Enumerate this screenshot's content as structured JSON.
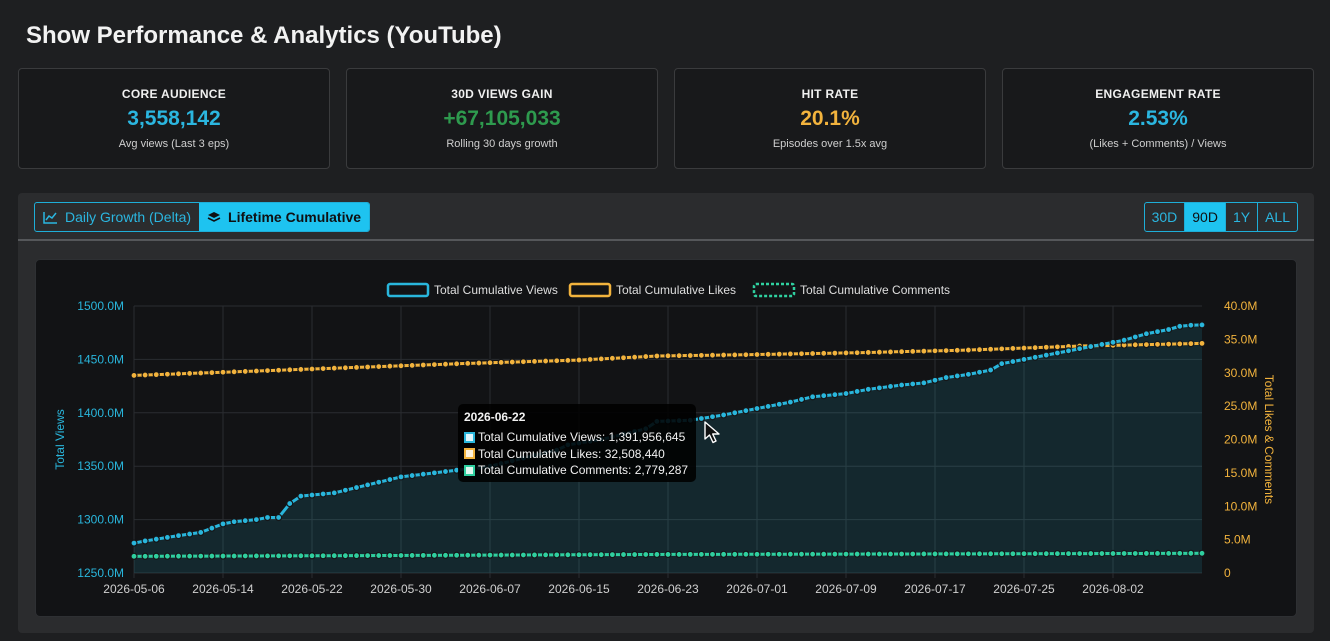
{
  "page": {
    "title": "Show Performance & Analytics (YouTube)"
  },
  "kpis": [
    {
      "label": "CORE AUDIENCE",
      "value": "3,558,142",
      "sub": "Avg views (Last 3 eps)",
      "color": "#2bb6e0"
    },
    {
      "label": "30D VIEWS GAIN",
      "value": "+67,105,033",
      "sub": "Rolling 30 days growth",
      "color": "#2e9a4e"
    },
    {
      "label": "HIT RATE",
      "value": "20.1%",
      "sub": "Episodes over 1.5x avg",
      "color": "#f2b33d"
    },
    {
      "label": "ENGAGEMENT RATE",
      "value": "2.53%",
      "sub": "(Likes + Comments) / Views",
      "color": "#2bb6e0"
    }
  ],
  "toolbar": {
    "daily_label": "Daily Growth (Delta)",
    "daily_icon": "line-chart-icon",
    "cumulative_label": "Lifetime Cumulative",
    "cumulative_icon": "layers-icon",
    "ranges": [
      "30D",
      "90D",
      "1Y",
      "ALL"
    ],
    "active_range": "90D"
  },
  "colors": {
    "accent": "#1ec3f0",
    "views": "#29b6dc",
    "likes": "#f2b33d",
    "comments": "#2fcf9f"
  },
  "chart_data": {
    "type": "line",
    "x_ticks": [
      "2026-05-06",
      "2026-05-14",
      "2026-05-22",
      "2026-05-30",
      "2026-06-07",
      "2026-06-15",
      "2026-06-23",
      "2026-07-01",
      "2026-07-09",
      "2026-07-17",
      "2026-07-25",
      "2026-08-02"
    ],
    "ylabel_left": "Total Views",
    "ylabel_right": "Total Likes & Comments",
    "yticks_left": [
      "1500.0M",
      "1450.0M",
      "1400.0M",
      "1350.0M",
      "1300.0M",
      "1250.0M"
    ],
    "yticks_right": [
      "40.0M",
      "35.0M",
      "30.0M",
      "25.0M",
      "20.0M",
      "15.0M",
      "10.0M",
      "5.0M",
      "0"
    ],
    "ylim_left": [
      1250,
      1500
    ],
    "ylim_right": [
      0,
      40
    ],
    "legend_position": "top",
    "series": [
      {
        "name": "Total Cumulative Views",
        "axis": "left",
        "units": "M",
        "points": [
          [
            0,
            1278
          ],
          [
            1,
            1280
          ],
          [
            4,
            1285
          ],
          [
            6,
            1288
          ],
          [
            7,
            1292
          ],
          [
            8,
            1296
          ],
          [
            9,
            1298
          ],
          [
            11,
            1300
          ],
          [
            12,
            1302
          ],
          [
            13,
            1302
          ],
          [
            14,
            1315
          ],
          [
            15,
            1322
          ],
          [
            18,
            1325
          ],
          [
            20,
            1330
          ],
          [
            22,
            1335
          ],
          [
            24,
            1340
          ],
          [
            28,
            1345
          ],
          [
            32,
            1350
          ],
          [
            34,
            1355
          ],
          [
            36,
            1360
          ],
          [
            38,
            1365
          ],
          [
            39,
            1370
          ],
          [
            42,
            1375
          ],
          [
            44,
            1380
          ],
          [
            46,
            1385
          ],
          [
            47,
            1391.96
          ],
          [
            50,
            1393
          ],
          [
            53,
            1398
          ],
          [
            55,
            1402
          ],
          [
            57,
            1406
          ],
          [
            59,
            1410
          ],
          [
            61,
            1415
          ],
          [
            64,
            1418
          ],
          [
            66,
            1422
          ],
          [
            69,
            1426
          ],
          [
            71,
            1428
          ],
          [
            73,
            1433
          ],
          [
            75,
            1436
          ],
          [
            77,
            1440
          ],
          [
            78,
            1446
          ],
          [
            79,
            1448
          ],
          [
            81,
            1452
          ],
          [
            83,
            1456
          ],
          [
            85,
            1460
          ],
          [
            87,
            1464
          ],
          [
            89,
            1468
          ],
          [
            91,
            1474
          ],
          [
            93,
            1478
          ],
          [
            94,
            1481
          ],
          [
            95,
            1482
          ],
          [
            96,
            1482.3
          ]
        ]
      },
      {
        "name": "Total Cumulative Likes",
        "axis": "right",
        "units": "M",
        "points": [
          [
            0,
            29.6
          ],
          [
            10,
            30.2
          ],
          [
            20,
            30.8
          ],
          [
            30,
            31.4
          ],
          [
            40,
            31.9
          ],
          [
            47,
            32.51
          ],
          [
            55,
            32.7
          ],
          [
            65,
            33.0
          ],
          [
            75,
            33.4
          ],
          [
            85,
            34.0
          ],
          [
            96,
            34.4
          ]
        ]
      },
      {
        "name": "Total Cumulative Comments",
        "axis": "right",
        "units": "M",
        "points": [
          [
            0,
            2.5
          ],
          [
            20,
            2.6
          ],
          [
            47,
            2.78
          ],
          [
            70,
            2.85
          ],
          [
            96,
            2.95
          ]
        ]
      }
    ],
    "n_points": 97
  },
  "tooltip": {
    "date": "2026-06-22",
    "rows": [
      {
        "text": "Total Cumulative Views: 1,391,956,645",
        "color": "#29b6dc"
      },
      {
        "text": "Total Cumulative Likes: 32,508,440",
        "color": "#f2b33d"
      },
      {
        "text": "Total Cumulative Comments: 2,779,287",
        "color": "#2fcf9f"
      }
    ]
  }
}
